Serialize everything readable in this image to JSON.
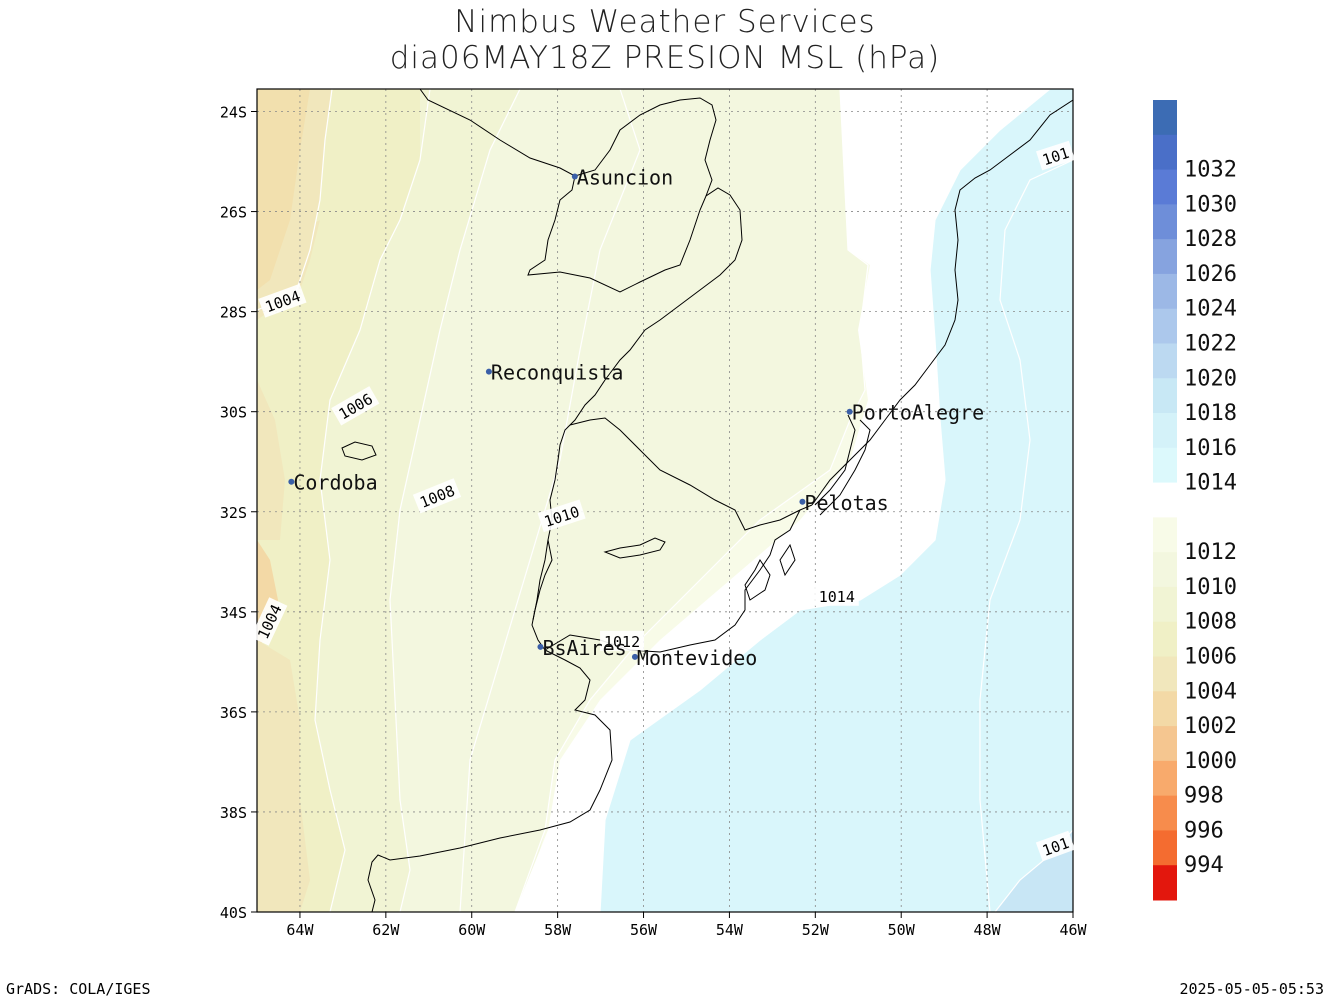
{
  "title": {
    "line1": "Nimbus Weather Services",
    "line2": "dia06MAY18Z PRESION MSL (hPa)"
  },
  "footer": {
    "left": "GrADS: COLA/IGES",
    "right": "2025-05-05-05:53"
  },
  "map": {
    "lat_labels": [
      "24S",
      "26S",
      "28S",
      "30S",
      "32S",
      "34S",
      "36S",
      "38S",
      "40S"
    ],
    "lon_labels": [
      "64W",
      "62W",
      "60W",
      "58W",
      "56W",
      "54W",
      "52W",
      "50W",
      "48W",
      "46W"
    ],
    "cities": [
      {
        "name": "Asuncion",
        "lon": -57.6,
        "lat": -25.3
      },
      {
        "name": "Reconquista",
        "lon": -59.6,
        "lat": -29.2
      },
      {
        "name": "PortoAlegre",
        "lon": -51.2,
        "lat": -30.0
      },
      {
        "name": "Cordoba",
        "lon": -64.2,
        "lat": -31.4
      },
      {
        "name": "Pelotas",
        "lon": -52.3,
        "lat": -31.8
      },
      {
        "name": "BsAires",
        "lon": -58.4,
        "lat": -34.7
      },
      {
        "name": "Montevideo",
        "lon": -56.2,
        "lat": -34.9
      }
    ],
    "contour_labels": [
      {
        "text": "1004",
        "lon": -64.4,
        "lat": -27.8
      },
      {
        "text": "1006",
        "lon": -62.7,
        "lat": -29.9
      },
      {
        "text": "1008",
        "lon": -60.8,
        "lat": -31.7
      },
      {
        "text": "1010",
        "lon": -57.9,
        "lat": -32.1
      },
      {
        "text": "1004",
        "lon": -64.7,
        "lat": -34.2
      },
      {
        "text": "1012",
        "lon": -56.5,
        "lat": -34.6
      },
      {
        "text": "1014",
        "lon": -51.5,
        "lat": -33.7
      },
      {
        "text": "101",
        "lon": -46.4,
        "lat": -24.9
      },
      {
        "text": "101",
        "lon": -46.4,
        "lat": -38.7
      }
    ]
  },
  "colorbar": {
    "levels": [
      {
        "label": "",
        "color": "#3c6cb4"
      },
      {
        "label": "1032",
        "color": "#4a6fc8"
      },
      {
        "label": "1030",
        "color": "#5a7bd6"
      },
      {
        "label": "1028",
        "color": "#6e8ed9"
      },
      {
        "label": "1026",
        "color": "#86a3df"
      },
      {
        "label": "1024",
        "color": "#9cb8e6"
      },
      {
        "label": "1022",
        "color": "#acc8ec"
      },
      {
        "label": "1020",
        "color": "#bcd9f1"
      },
      {
        "label": "1018",
        "color": "#c8e8f5"
      },
      {
        "label": "1016",
        "color": "#d4f2f9"
      },
      {
        "label": "1014",
        "color": "#dcf9fc"
      },
      {
        "label": "",
        "color": "#ffffff"
      },
      {
        "label": "1012",
        "color": "#f8fbe8"
      },
      {
        "label": "1010",
        "color": "#f3f7df"
      },
      {
        "label": "1008",
        "color": "#f1f4d4"
      },
      {
        "label": "1006",
        "color": "#f0f0c6"
      },
      {
        "label": "1004",
        "color": "#f1e7bc"
      },
      {
        "label": "1002",
        "color": "#f3d9a6"
      },
      {
        "label": "1000",
        "color": "#f5c690"
      },
      {
        "label": "998",
        "color": "#f8aa6c"
      },
      {
        "label": "996",
        "color": "#f78c4c"
      },
      {
        "label": "994",
        "color": "#f46c30"
      },
      {
        "label": "",
        "color": "#e3170d"
      }
    ]
  }
}
